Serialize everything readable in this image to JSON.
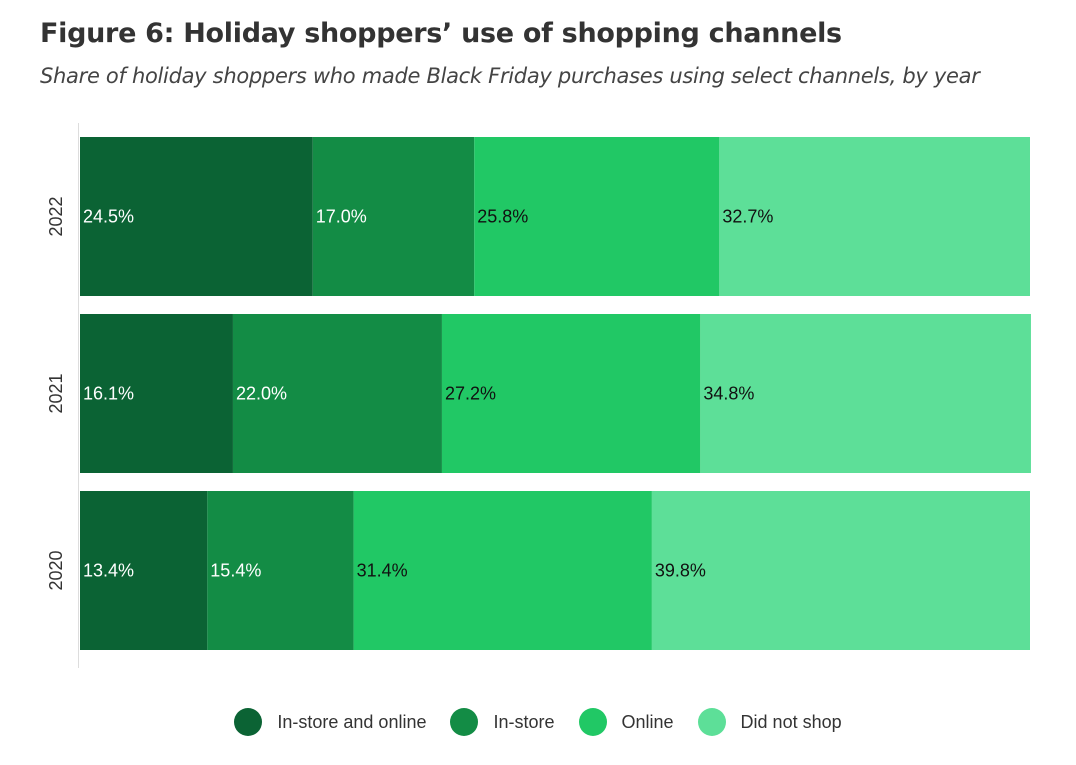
{
  "title": "Figure 6: Holiday shoppers’ use of shopping channels",
  "subtitle": "Share of holiday shoppers who made Black Friday purchases using select channels, by year",
  "chart_data": {
    "type": "bar",
    "orientation": "horizontal",
    "stacked": true,
    "categories": [
      "2022",
      "2021",
      "2020"
    ],
    "series": [
      {
        "name": "In-store and online",
        "color": "#0b6334",
        "label_color": "#ffffff",
        "values": [
          24.5,
          16.1,
          13.4
        ],
        "labels": [
          "24.5%",
          "16.1%",
          "13.4%"
        ]
      },
      {
        "name": "In-store",
        "color": "#138c45",
        "label_color": "#ffffff",
        "values": [
          17.0,
          22.0,
          15.4
        ],
        "labels": [
          "17.0%",
          "22.0%",
          "15.4%"
        ]
      },
      {
        "name": "Online",
        "color": "#21c865",
        "label_color": "#111111",
        "values": [
          25.8,
          27.2,
          31.4
        ],
        "labels": [
          "25.8%",
          "27.2%",
          "31.4%"
        ]
      },
      {
        "name": "Did not shop",
        "color": "#5ddf98",
        "label_color": "#111111",
        "values": [
          32.7,
          34.8,
          39.8
        ],
        "labels": [
          "32.7%",
          "34.8%",
          "39.8%"
        ]
      }
    ],
    "xlim": [
      0,
      100
    ],
    "grid": false,
    "legend_position": "bottom"
  }
}
